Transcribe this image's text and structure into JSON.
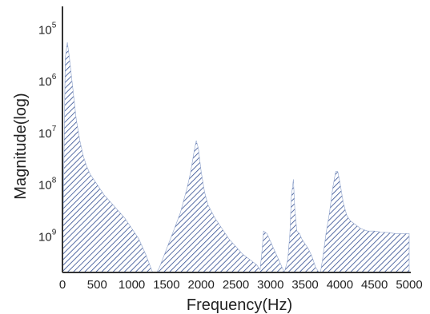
{
  "chart_data": {
    "type": "area",
    "xlabel": "Frequency(Hz)",
    "ylabel": "Magnitude(log)",
    "xlim": [
      0,
      5000
    ],
    "x_ticks": [
      0,
      500,
      1000,
      1500,
      2000,
      2500,
      3000,
      3500,
      4000,
      4500,
      5000
    ],
    "y_ticks": [
      {
        "value": 5,
        "base": "10",
        "exp": "5"
      },
      {
        "value": 6,
        "base": "10",
        "exp": "6"
      },
      {
        "value": 7,
        "base": "10",
        "exp": "7"
      },
      {
        "value": 8,
        "base": "10",
        "exp": "8"
      },
      {
        "value": 9,
        "base": "10",
        "exp": "9"
      }
    ],
    "ylim": [
      4.7,
      9.75
    ],
    "y_axis_inverted": true,
    "grid": false,
    "fill": "diagonal hatch",
    "colors": {
      "hatch": "#2e4a8f",
      "axis": "#333333",
      "background": "#ffffff"
    },
    "series": [
      {
        "x": [
          0,
          40,
          70,
          100,
          150,
          200,
          250,
          300,
          350,
          400,
          500,
          600,
          700,
          800,
          900,
          1000,
          1100,
          1200,
          1300,
          1360,
          1400,
          1500,
          1600,
          1700,
          1800,
          1850,
          1900,
          1930,
          1960,
          2000,
          2050,
          2100,
          2200,
          2300,
          2400,
          2500,
          2600,
          2700,
          2800,
          2850,
          2880,
          2900,
          2950,
          3000,
          3050,
          3100,
          3150,
          3200,
          3250,
          3280,
          3300,
          3330,
          3350,
          3380,
          3420,
          3450,
          3500,
          3550,
          3600,
          3650,
          3700,
          3720,
          3750,
          3800,
          3850,
          3900,
          3940,
          3970,
          4000,
          4050,
          4100,
          4150,
          4200,
          4300,
          4400,
          4500,
          4600,
          4700,
          4800,
          4900,
          5000
        ],
        "y": [
          9.75,
          5.6,
          5.3,
          5.6,
          6.2,
          6.8,
          7.2,
          7.5,
          7.7,
          7.85,
          8.05,
          8.25,
          8.4,
          8.55,
          8.7,
          8.9,
          9.1,
          9.4,
          9.75,
          9.75,
          9.65,
          9.3,
          8.95,
          8.6,
          8.1,
          7.8,
          7.4,
          7.2,
          7.35,
          7.8,
          8.2,
          8.45,
          8.7,
          8.9,
          9.1,
          9.25,
          9.4,
          9.5,
          9.6,
          9.7,
          9.3,
          8.95,
          9.0,
          9.15,
          9.3,
          9.45,
          9.6,
          9.75,
          9.5,
          9.0,
          8.3,
          7.95,
          8.5,
          8.95,
          9.0,
          9.1,
          9.2,
          9.3,
          9.45,
          9.65,
          9.75,
          9.75,
          9.5,
          9.0,
          8.6,
          8.1,
          7.8,
          7.8,
          8.0,
          8.4,
          8.65,
          8.75,
          8.8,
          8.9,
          8.95,
          8.95,
          8.97,
          8.98,
          9.0,
          9.0,
          9.0
        ]
      }
    ]
  }
}
